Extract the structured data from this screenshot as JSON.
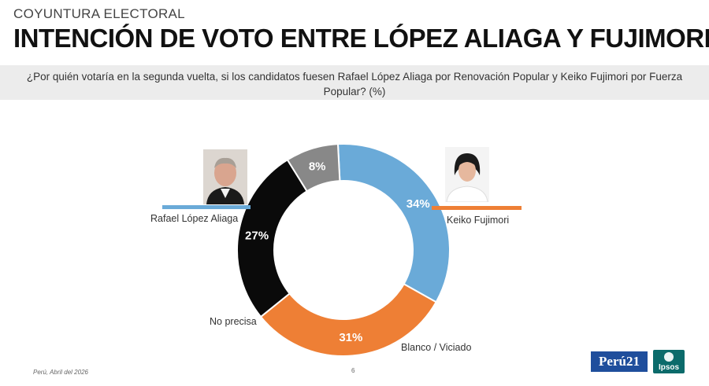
{
  "header": {
    "kicker": "COYUNTURA ELECTORAL",
    "title": "INTENCIÓN DE VOTO ENTRE LÓPEZ ALIAGA Y FUJIMORI",
    "question": "¿Por quién votaría en la segunda vuelta, si los candidatos fuesen Rafael López Aliaga  por Renovación Popular y Keiko Fujimori por Fuerza Popular?  (%)"
  },
  "chart_data": {
    "type": "pie",
    "donut": true,
    "categories": [
      "Rafael López Aliaga",
      "Keiko  Fujimori",
      "Blanco / Viciado",
      "No precisa"
    ],
    "values": [
      34,
      31,
      27,
      8
    ],
    "value_labels": [
      "34%",
      "31%",
      "27%",
      "8%"
    ],
    "colors": [
      "#6aaad8",
      "#ee7f35",
      "#0a0a0a",
      "#888888"
    ],
    "start_angle_deg": -3,
    "title": ""
  },
  "candidates": {
    "left": {
      "name": "Rafael López Aliaga",
      "color": "#6aaad8"
    },
    "right": {
      "name": "Keiko  Fujimori",
      "color": "#ee7f35"
    }
  },
  "footer": {
    "source": "Perú, Abril del 2026",
    "page": "6"
  },
  "logos": {
    "peru21": "Perú21",
    "ipsos": "Ipsos"
  }
}
